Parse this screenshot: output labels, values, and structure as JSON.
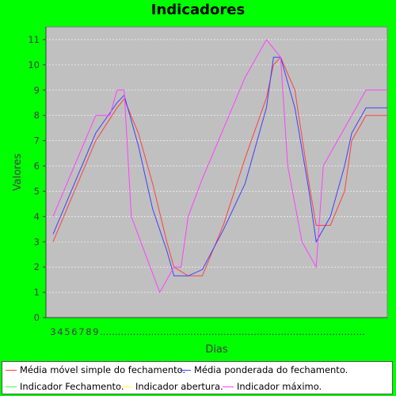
{
  "chart_data": {
    "type": "line",
    "title": "Indicadores",
    "xlabel": "Dias",
    "ylabel": "Valores",
    "ylim": [
      0,
      11.5
    ],
    "yticks": [
      0,
      1,
      2,
      3,
      4,
      5,
      6,
      7,
      8,
      9,
      10,
      11
    ],
    "xlim": [
      2,
      50
    ],
    "x_tick_labels": [
      "3",
      "4",
      "5",
      "6",
      "7",
      "8",
      "9",
      "........................................................................................"
    ],
    "grid": true,
    "legend_position": "bottom",
    "background_color": "#c0c0c0",
    "outer_color": "#00ff00",
    "series": [
      {
        "name": "Média móvel simple do fechamento.",
        "color": "#ff4040",
        "x": [
          3,
          6,
          9,
          12,
          13,
          15,
          17,
          19,
          20,
          22,
          24,
          27,
          30,
          33,
          34,
          35,
          37,
          39,
          40,
          42,
          44,
          45,
          47,
          48,
          50
        ],
        "y": [
          3.0,
          5.0,
          7.0,
          8.3,
          8.65,
          7.3,
          5.3,
          3.0,
          2.0,
          1.65,
          1.65,
          3.7,
          6.3,
          8.7,
          10.0,
          10.3,
          9.0,
          5.3,
          3.65,
          3.65,
          5.0,
          7.0,
          8.0,
          8.0,
          8.0
        ]
      },
      {
        "name": "Média ponderada do fechamento.",
        "color": "#4040ff",
        "x": [
          3,
          6,
          9,
          12,
          13,
          15,
          17,
          19,
          20,
          22,
          24,
          27,
          30,
          33,
          34,
          35,
          37,
          39,
          40,
          42,
          44,
          45,
          47,
          48,
          50
        ],
        "y": [
          3.3,
          5.3,
          7.3,
          8.5,
          8.8,
          6.8,
          4.3,
          2.65,
          1.65,
          1.65,
          1.9,
          3.5,
          5.3,
          8.3,
          10.3,
          10.3,
          8.3,
          5.0,
          3.0,
          4.0,
          6.0,
          7.3,
          8.3,
          8.3,
          8.3
        ]
      },
      {
        "name": "Indicador Fechamento.",
        "color": "#40ff40",
        "x": [],
        "y": []
      },
      {
        "name": "Indicador abertura.",
        "color": "#ffff40",
        "x": [],
        "y": []
      },
      {
        "name": "Indicador máximo.",
        "color": "#ff40ff",
        "x": [
          3,
          6,
          9,
          11,
          12,
          13,
          14,
          16,
          18,
          20,
          21,
          22,
          24,
          27,
          30,
          33,
          35,
          36,
          38,
          40,
          41,
          43,
          45,
          47,
          48,
          50
        ],
        "y": [
          4.0,
          6.0,
          8.0,
          8.0,
          9.0,
          9.0,
          4.0,
          2.5,
          1.0,
          2.0,
          2.0,
          4.0,
          5.5,
          7.5,
          9.5,
          11.0,
          10.3,
          6.0,
          3.0,
          2.0,
          6.0,
          7.0,
          8.0,
          9.0,
          9.0,
          9.0
        ]
      }
    ]
  }
}
